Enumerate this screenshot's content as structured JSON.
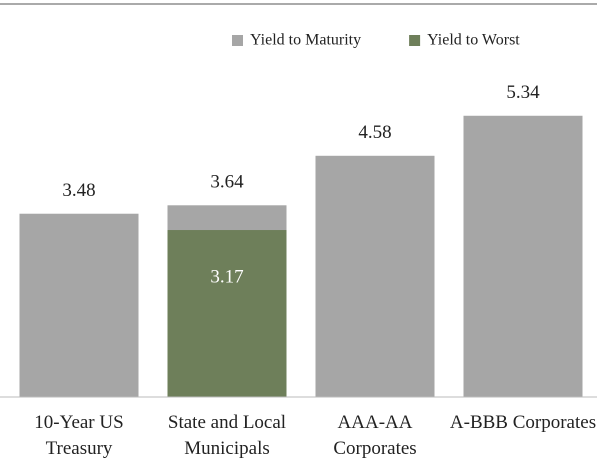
{
  "chart_data": {
    "type": "bar",
    "categories": [
      "10-Year US Treasury",
      "State and Local Municipals",
      "AAA-AA Corporates",
      "A-BBB Corporates"
    ],
    "series": [
      {
        "name": "Yield to Maturity",
        "color": "#a6a6a6",
        "values": [
          3.48,
          3.64,
          4.58,
          5.34
        ]
      },
      {
        "name": "Yield to Worst",
        "color": "#6e7f5a",
        "values": [
          null,
          3.17,
          null,
          null
        ]
      }
    ],
    "ylim": [
      0,
      6
    ],
    "legend": "top-right"
  }
}
